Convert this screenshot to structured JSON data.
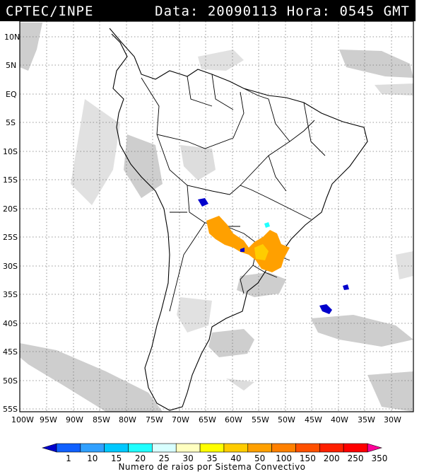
{
  "header": {
    "source": "CPTEC/INPE",
    "data_label": "Data:",
    "date": "20090113",
    "hora_label": "Hora:",
    "time": "0545",
    "tz": "GMT"
  },
  "map": {
    "lat_labels": [
      "10N",
      "5N",
      "EQ",
      "5S",
      "10S",
      "15S",
      "20S",
      "25S",
      "30S",
      "35S",
      "40S",
      "45S",
      "50S",
      "55S"
    ],
    "lon_labels": [
      "100W",
      "95W",
      "90W",
      "85W",
      "80W",
      "75W",
      "70W",
      "65W",
      "60W",
      "55W",
      "50W",
      "45W",
      "40W",
      "35W",
      "30W"
    ],
    "grid": true
  },
  "legend": {
    "ticks": [
      "1",
      "10",
      "15",
      "20",
      "25",
      "30",
      "35",
      "40",
      "50",
      "100",
      "150",
      "200",
      "250",
      "350"
    ],
    "colors": [
      "#0000cc",
      "#1060ff",
      "#30a0ff",
      "#00c8ff",
      "#20ffff",
      "#d8ffff",
      "#ffffc0",
      "#ffff00",
      "#ffcc00",
      "#ffa000",
      "#ff8000",
      "#ff5000",
      "#ff2000",
      "#ff0000",
      "#ff0099"
    ],
    "title": "Numero de raios por Sistema Convectivo"
  }
}
